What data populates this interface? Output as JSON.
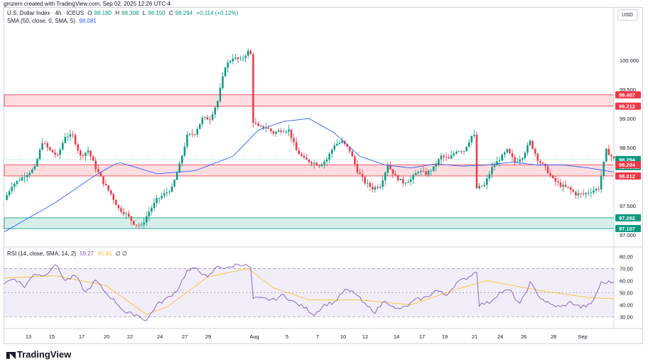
{
  "header": {
    "attribution": "gmzern created with TradingView.com, Sep 02, 2025 12:26 UTC-4"
  },
  "symbol": {
    "name": "U.S. Dollar Index · 4h · ICEUS",
    "o_label": "O",
    "o": "98.180",
    "h_label": "H",
    "h": "98.308",
    "l_label": "L",
    "l": "98.150",
    "c_label": "C",
    "c": "98.294",
    "change": "+0.114 (+0.12%)",
    "up_color": "#089981",
    "down_color": "#f23645"
  },
  "sma_legend": {
    "label": "SMA (50, close, 0, SMA, 5)",
    "value": "98.081",
    "color": "#2962ff"
  },
  "rsi_legend": {
    "label": "RSI (14, close, SMA, 14, 2)",
    "value1": "59.27",
    "value2": "45.45",
    "extra": "∅ ∅",
    "color": "#7e57c2",
    "ma_color": "#fbc02d"
  },
  "currency": "USD",
  "price_labels": [
    "100.000",
    "99.500",
    "99.000",
    "98.500",
    "97.500",
    "97.000"
  ],
  "level_tags": [
    {
      "text": "99.407",
      "color": "#f23645"
    },
    {
      "text": "99.212",
      "color": "#f23645"
    },
    {
      "text": "98.294",
      "color": "#089981"
    },
    {
      "text": "02:33:10",
      "color": "#089981"
    },
    {
      "text": "98.204",
      "color": "#f23645"
    },
    {
      "text": "98.012",
      "color": "#f23645"
    },
    {
      "text": "97.292",
      "color": "#089981"
    },
    {
      "text": "97.107",
      "color": "#089981"
    }
  ],
  "rsi_labels": [
    "80.00",
    "70.00",
    "60.00",
    "50.00",
    "40.00",
    "30.00"
  ],
  "time_labels": [
    "13",
    "15",
    "17",
    "20",
    "22",
    "24",
    "27",
    "29",
    "Aug",
    "5",
    "7",
    "10",
    "12",
    "14",
    "17",
    "19",
    "21",
    "24",
    "26",
    "28",
    "Sep"
  ],
  "brand": "TradingView",
  "chart_data": [
    {
      "type": "candlestick",
      "ylim": [
        96.95,
        100.55
      ],
      "zones": [
        {
          "from": 99.212,
          "to": 99.407,
          "color": "#f23645"
        },
        {
          "from": 98.012,
          "to": 98.204,
          "color": "#f23645"
        },
        {
          "from": 97.107,
          "to": 97.292,
          "color": "#089981"
        }
      ],
      "current_price": 98.294,
      "path_points": [
        [
          0,
          97.6
        ],
        [
          3,
          97.85
        ],
        [
          6,
          97.95
        ],
        [
          9,
          98.05
        ],
        [
          12,
          98.15
        ],
        [
          15,
          98.6
        ],
        [
          18,
          98.45
        ],
        [
          21,
          98.35
        ],
        [
          24,
          98.7
        ],
        [
          27,
          98.7
        ],
        [
          30,
          98.35
        ],
        [
          33,
          98.45
        ],
        [
          36,
          98.15
        ],
        [
          39,
          97.9
        ],
        [
          42,
          97.7
        ],
        [
          45,
          97.45
        ],
        [
          48,
          97.35
        ],
        [
          51,
          97.2
        ],
        [
          54,
          97.15
        ],
        [
          57,
          97.4
        ],
        [
          60,
          97.6
        ],
        [
          63,
          97.7
        ],
        [
          66,
          97.8
        ],
        [
          69,
          98.2
        ],
        [
          72,
          98.7
        ],
        [
          75,
          98.75
        ],
        [
          78,
          99.0
        ],
        [
          81,
          99.0
        ],
        [
          84,
          99.3
        ],
        [
          87,
          99.9
        ],
        [
          90,
          100.05
        ],
        [
          93,
          100.0
        ],
        [
          96,
          100.15
        ],
        [
          97,
          100.1
        ],
        [
          98,
          98.95
        ],
        [
          100,
          98.85
        ],
        [
          103,
          98.85
        ],
        [
          106,
          98.75
        ],
        [
          109,
          98.8
        ],
        [
          112,
          98.8
        ],
        [
          115,
          98.45
        ],
        [
          118,
          98.3
        ],
        [
          121,
          98.25
        ],
        [
          124,
          98.2
        ],
        [
          127,
          98.3
        ],
        [
          130,
          98.55
        ],
        [
          133,
          98.6
        ],
        [
          136,
          98.45
        ],
        [
          139,
          98.1
        ],
        [
          142,
          97.9
        ],
        [
          145,
          97.8
        ],
        [
          148,
          97.85
        ],
        [
          151,
          98.2
        ],
        [
          154,
          98.0
        ],
        [
          157,
          97.9
        ],
        [
          160,
          97.95
        ],
        [
          163,
          98.1
        ],
        [
          166,
          98.05
        ],
        [
          169,
          98.15
        ],
        [
          172,
          98.35
        ],
        [
          175,
          98.3
        ],
        [
          178,
          98.45
        ],
        [
          181,
          98.45
        ],
        [
          184,
          98.7
        ],
        [
          185,
          98.7
        ],
        [
          186,
          97.8
        ],
        [
          189,
          97.85
        ],
        [
          192,
          98.15
        ],
        [
          195,
          98.3
        ],
        [
          198,
          98.45
        ],
        [
          201,
          98.25
        ],
        [
          204,
          98.35
        ],
        [
          207,
          98.6
        ],
        [
          210,
          98.3
        ],
        [
          213,
          98.15
        ],
        [
          216,
          97.95
        ],
        [
          219,
          97.85
        ],
        [
          222,
          97.8
        ],
        [
          225,
          97.7
        ],
        [
          228,
          97.7
        ],
        [
          231,
          97.75
        ],
        [
          234,
          97.8
        ],
        [
          237,
          98.45
        ],
        [
          240,
          98.3
        ]
      ],
      "sma": [
        [
          0,
          97.05
        ],
        [
          20,
          97.55
        ],
        [
          35,
          98.0
        ],
        [
          45,
          98.25
        ],
        [
          60,
          98.05
        ],
        [
          75,
          98.1
        ],
        [
          90,
          98.35
        ],
        [
          100,
          98.8
        ],
        [
          110,
          98.95
        ],
        [
          120,
          99.0
        ],
        [
          130,
          98.75
        ],
        [
          140,
          98.35
        ],
        [
          150,
          98.2
        ],
        [
          160,
          98.15
        ],
        [
          170,
          98.22
        ],
        [
          180,
          98.18
        ],
        [
          190,
          98.2
        ],
        [
          200,
          98.25
        ],
        [
          210,
          98.2
        ],
        [
          220,
          98.2
        ],
        [
          230,
          98.15
        ],
        [
          240,
          98.08
        ]
      ]
    },
    {
      "type": "line",
      "ylim": [
        25,
        82
      ],
      "bands": [
        30,
        50,
        70
      ],
      "rsi": [
        [
          0,
          58
        ],
        [
          4,
          62
        ],
        [
          8,
          55
        ],
        [
          12,
          66
        ],
        [
          16,
          64
        ],
        [
          20,
          74
        ],
        [
          24,
          60
        ],
        [
          28,
          64
        ],
        [
          32,
          50
        ],
        [
          36,
          60
        ],
        [
          40,
          50
        ],
        [
          44,
          42
        ],
        [
          48,
          33
        ],
        [
          52,
          32
        ],
        [
          56,
          27
        ],
        [
          60,
          40
        ],
        [
          64,
          45
        ],
        [
          68,
          52
        ],
        [
          72,
          68
        ],
        [
          76,
          70
        ],
        [
          80,
          62
        ],
        [
          84,
          72
        ],
        [
          88,
          70
        ],
        [
          92,
          74
        ],
        [
          96,
          72
        ],
        [
          97,
          70
        ],
        [
          98,
          45
        ],
        [
          102,
          45
        ],
        [
          106,
          44
        ],
        [
          110,
          48
        ],
        [
          114,
          42
        ],
        [
          118,
          38
        ],
        [
          122,
          32
        ],
        [
          126,
          40
        ],
        [
          130,
          42
        ],
        [
          134,
          52
        ],
        [
          138,
          50
        ],
        [
          142,
          40
        ],
        [
          146,
          34
        ],
        [
          150,
          44
        ],
        [
          154,
          36
        ],
        [
          158,
          38
        ],
        [
          162,
          44
        ],
        [
          166,
          46
        ],
        [
          170,
          52
        ],
        [
          174,
          48
        ],
        [
          178,
          58
        ],
        [
          182,
          62
        ],
        [
          186,
          68
        ],
        [
          187,
          40
        ],
        [
          191,
          42
        ],
        [
          195,
          50
        ],
        [
          199,
          52
        ],
        [
          203,
          40
        ],
        [
          207,
          58
        ],
        [
          211,
          46
        ],
        [
          215,
          40
        ],
        [
          219,
          38
        ],
        [
          223,
          42
        ],
        [
          227,
          38
        ],
        [
          231,
          40
        ],
        [
          235,
          58
        ],
        [
          240,
          59
        ]
      ],
      "rsi_ma": [
        [
          0,
          62
        ],
        [
          20,
          64
        ],
        [
          40,
          56
        ],
        [
          56,
          32
        ],
        [
          64,
          38
        ],
        [
          80,
          63
        ],
        [
          96,
          70
        ],
        [
          106,
          54
        ],
        [
          120,
          44
        ],
        [
          140,
          44
        ],
        [
          160,
          40
        ],
        [
          180,
          54
        ],
        [
          190,
          60
        ],
        [
          210,
          52
        ],
        [
          230,
          46
        ],
        [
          240,
          45
        ]
      ]
    }
  ]
}
